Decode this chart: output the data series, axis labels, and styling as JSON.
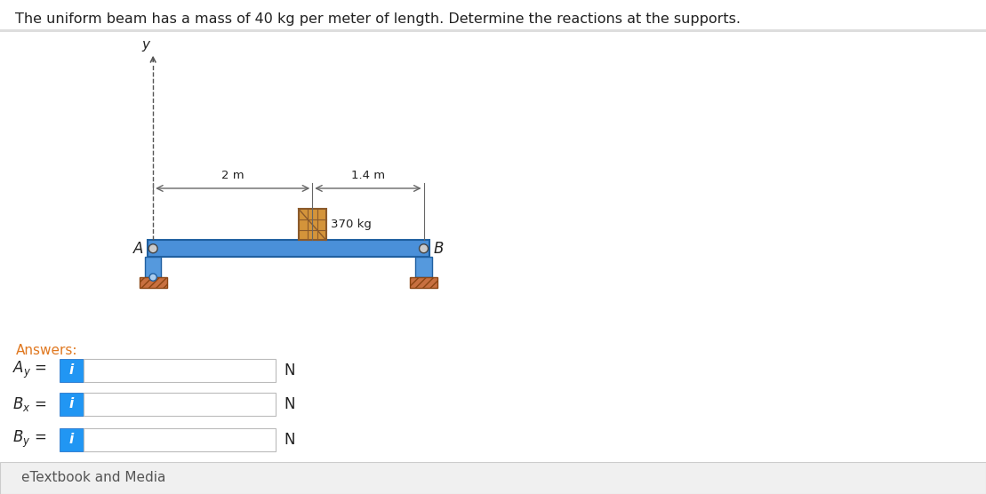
{
  "title": "The uniform beam has a mass of 40 kg per meter of length. Determine the reactions at the supports.",
  "title_fontsize": 11.5,
  "bg_color": "#ffffff",
  "beam_color": "#4a90d9",
  "beam_edge_color": "#2060a0",
  "box_color": "#d4943a",
  "box_edge_color": "#8b5a2b",
  "ground_color": "#c87040",
  "ground_edge_color": "#8b4513",
  "support_color": "#5599dd",
  "pin_color": "#888888",
  "pin_edge_color": "#444444",
  "dim_line_color": "#666666",
  "axis_line_color": "#555555",
  "dim_2m_label": "2 m",
  "dim_14m_label": "1.4 m",
  "weight_label": "370 kg",
  "label_A": "A",
  "label_B": "B",
  "label_y": "y",
  "answers_label": "Answers:",
  "answers_color": "#e07820",
  "unit_label": "N",
  "etextbook_label": "eTextbook and Media",
  "input_blue": "#2196F3",
  "input_blue_dark": "#1565C0",
  "input_bg": "#ffffff",
  "input_border": "#bbbbbb",
  "etb_bg": "#f0f0f0",
  "etb_border": "#cccccc",
  "text_color": "#222222",
  "etb_text_color": "#555555"
}
